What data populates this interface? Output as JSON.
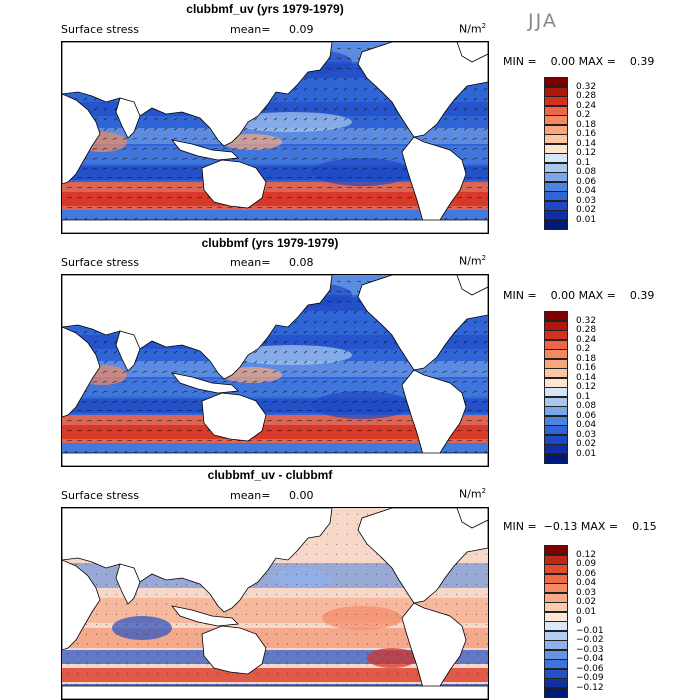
{
  "season": "JJA",
  "colors": {
    "ocean_mean": "#2f65d6",
    "land": "#ffffff",
    "coast": "#000000",
    "arrow": "#111111"
  },
  "panels": [
    {
      "id": "p1",
      "title": "clubbmf_uv (yrs 1979-1979)",
      "field": "Surface stress",
      "mean_label": "mean=",
      "mean_value": "0.09",
      "units": "N/m",
      "units_sup": "2",
      "minmax": "MIN =    0.00 MAX =    0.39",
      "colorbar": {
        "labels": [
          "0.32",
          "0.28",
          "0.24",
          "0.2",
          "0.18",
          "0.16",
          "0.14",
          "0.12",
          "0.1",
          "0.08",
          "0.06",
          "0.04",
          "0.03",
          "0.02",
          "0.01"
        ],
        "colors": [
          "#7f0000",
          "#b2150a",
          "#d7301f",
          "#ef6548",
          "#f4895f",
          "#f9a67d",
          "#fcc5a3",
          "#fde5cf",
          "#d7e6f7",
          "#a8c8f0",
          "#7ba6ea",
          "#4c82e0",
          "#2f65d6",
          "#1f49c4",
          "#0f2fa6",
          "#001a7a"
        ]
      }
    },
    {
      "id": "p2",
      "title": "clubbmf (yrs 1979-1979)",
      "field": "Surface stress",
      "mean_label": "mean=",
      "mean_value": "0.08",
      "units": "N/m",
      "units_sup": "2",
      "minmax": "MIN =    0.00 MAX =    0.39",
      "colorbar": {
        "labels": [
          "0.32",
          "0.28",
          "0.24",
          "0.2",
          "0.18",
          "0.16",
          "0.14",
          "0.12",
          "0.1",
          "0.08",
          "0.06",
          "0.04",
          "0.03",
          "0.02",
          "0.01"
        ],
        "colors": [
          "#7f0000",
          "#b2150a",
          "#d7301f",
          "#ef6548",
          "#f4895f",
          "#f9a67d",
          "#fcc5a3",
          "#fde5cf",
          "#d7e6f7",
          "#a8c8f0",
          "#7ba6ea",
          "#4c82e0",
          "#2f65d6",
          "#1f49c4",
          "#0f2fa6",
          "#001a7a"
        ]
      }
    },
    {
      "id": "p3",
      "title": "clubbmf_uv - clubbmf",
      "field": "Surface stress",
      "mean_label": "mean=",
      "mean_value": "0.00",
      "units": "N/m",
      "units_sup": "2",
      "minmax": "MIN =  −0.13 MAX =    0.15",
      "colorbar": {
        "labels": [
          "0.12",
          "0.09",
          "0.06",
          "0.04",
          "0.03",
          "0.02",
          "0.01",
          "0",
          "−0.01",
          "−0.02",
          "−0.03",
          "−0.04",
          "−0.06",
          "−0.09",
          "−0.12"
        ],
        "colors": [
          "#7f0000",
          "#c0270f",
          "#e34a2e",
          "#f06a48",
          "#f58a66",
          "#f9aa88",
          "#fccaad",
          "#fde7d8",
          "#dbe8f8",
          "#b4cdf2",
          "#8db1ec",
          "#6694e5",
          "#3f74da",
          "#2451c4",
          "#10329f",
          "#001a7a"
        ]
      }
    }
  ]
}
